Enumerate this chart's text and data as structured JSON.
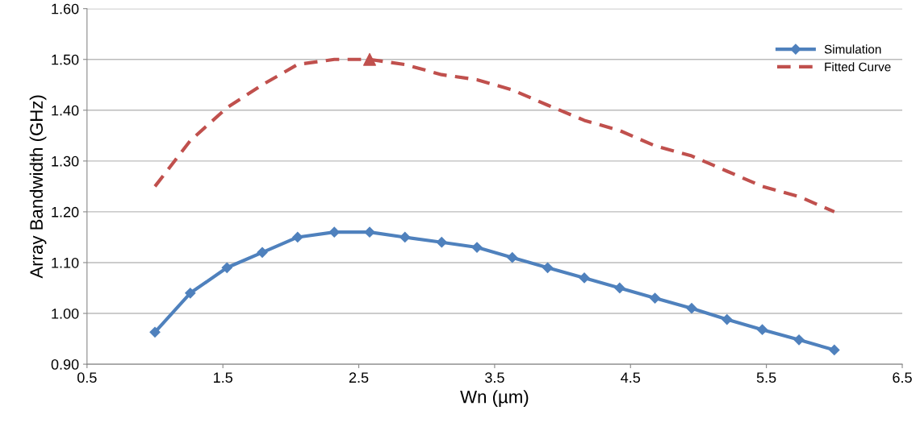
{
  "chart_data": {
    "type": "line",
    "xlabel": "Wn (µm)",
    "ylabel": "Array Bandwidth (GHz)",
    "xlim": [
      0.5,
      6.5
    ],
    "xticks": [
      {
        "value": 0.5,
        "label": "0.5"
      },
      {
        "value": 1.5,
        "label": "1.5"
      },
      {
        "value": 2.5,
        "label": "2.5"
      },
      {
        "value": 3.5,
        "label": "3.5"
      },
      {
        "value": 4.5,
        "label": "4.5"
      },
      {
        "value": 5.5,
        "label": "5.5"
      },
      {
        "value": 6.5,
        "label": "6.5"
      }
    ],
    "ylim": [
      0.9,
      1.6
    ],
    "yticks": [
      {
        "value": 0.9,
        "label": "0.90"
      },
      {
        "value": 1.0,
        "label": "1.00"
      },
      {
        "value": 1.1,
        "label": "1.10"
      },
      {
        "value": 1.2,
        "label": "1.20"
      },
      {
        "value": 1.3,
        "label": "1.30"
      },
      {
        "value": 1.4,
        "label": "1.40"
      },
      {
        "value": 1.5,
        "label": "1.50"
      },
      {
        "value": 1.6,
        "label": "1.60"
      }
    ],
    "grid": "y",
    "legend": "top right",
    "series": [
      {
        "name": "Simulation",
        "color": "#4f81bd",
        "marker": "diamond",
        "line_style": "solid",
        "x": [
          1.0,
          1.26,
          1.53,
          1.79,
          2.05,
          2.32,
          2.58,
          2.84,
          3.11,
          3.37,
          3.63,
          3.89,
          4.16,
          4.42,
          4.68,
          4.95,
          5.21,
          5.47,
          5.74,
          6.0
        ],
        "values": [
          0.963,
          1.04,
          1.09,
          1.12,
          1.15,
          1.16,
          1.16,
          1.15,
          1.14,
          1.13,
          1.11,
          1.09,
          1.07,
          1.05,
          1.03,
          1.01,
          0.988,
          0.968,
          0.948,
          0.928
        ]
      },
      {
        "name": "Fitted Curve",
        "color": "#c0504d",
        "marker": "none",
        "line_style": "dashed",
        "x": [
          1.0,
          1.26,
          1.53,
          1.79,
          2.05,
          2.32,
          2.58,
          2.84,
          3.11,
          3.37,
          3.63,
          3.89,
          4.16,
          4.42,
          4.68,
          4.95,
          5.21,
          5.47,
          5.74,
          6.0
        ],
        "values": [
          1.25,
          1.34,
          1.405,
          1.45,
          1.49,
          1.5,
          1.5,
          1.49,
          1.47,
          1.46,
          1.44,
          1.41,
          1.38,
          1.36,
          1.33,
          1.31,
          1.28,
          1.25,
          1.23,
          1.2
        ]
      },
      {
        "type": "scatter",
        "color": "#c0504d",
        "marker": "triangle",
        "x": [
          2.58
        ],
        "values": [
          1.5
        ]
      }
    ]
  }
}
